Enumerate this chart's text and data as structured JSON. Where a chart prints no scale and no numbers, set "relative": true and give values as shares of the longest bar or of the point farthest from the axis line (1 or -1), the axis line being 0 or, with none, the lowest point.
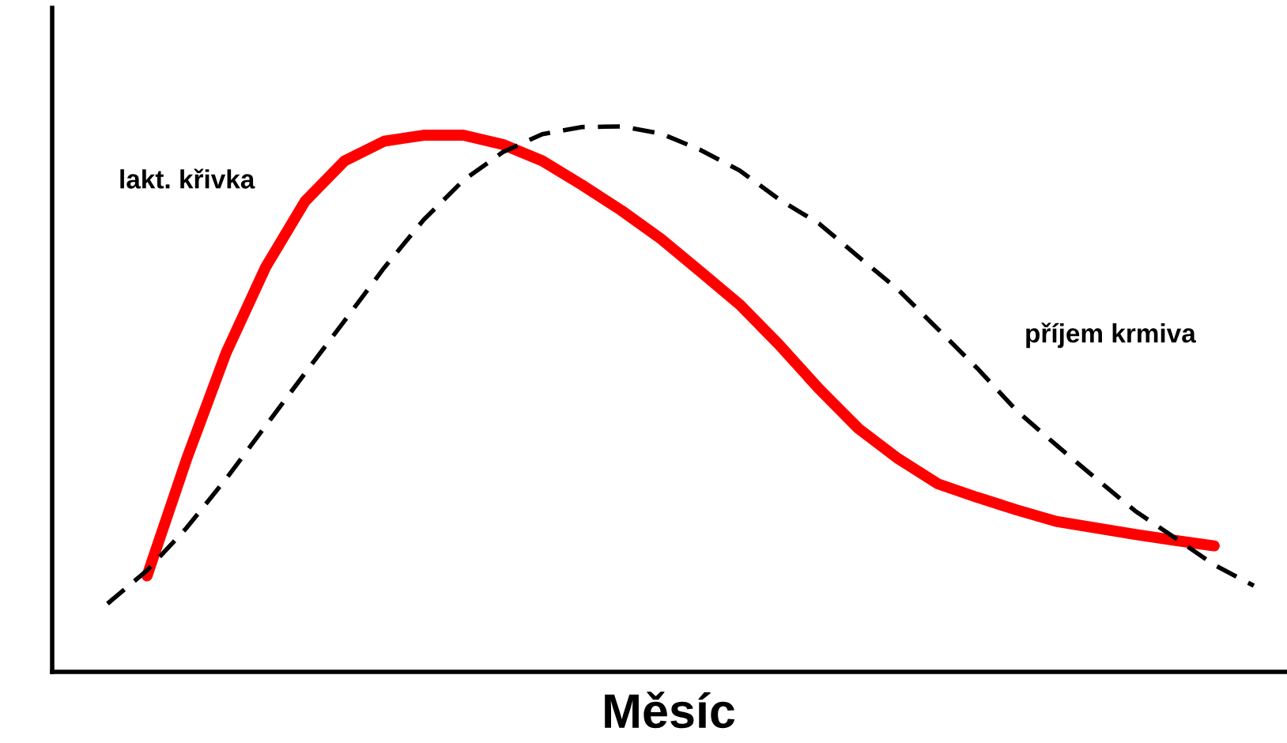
{
  "chart_data": {
    "type": "line",
    "relative": true,
    "xlabel": "Měsíc",
    "legend": false,
    "marker": "none",
    "categories": [
      null,
      null,
      null,
      null,
      null,
      null,
      null,
      null,
      null,
      null,
      null,
      null,
      null,
      null,
      null,
      null,
      null,
      null,
      null,
      null,
      null,
      null,
      null,
      null,
      null,
      null,
      null,
      null,
      null,
      null
    ],
    "series": [
      {
        "name": "lakt. křivka",
        "color": "#ff0000",
        "line_style": "solid",
        "values": [
          null,
          0.176,
          0.39,
          0.585,
          0.742,
          0.863,
          0.937,
          0.973,
          0.984,
          0.984,
          0.967,
          0.937,
          0.893,
          0.846,
          0.794,
          0.734,
          0.673,
          0.599,
          0.519,
          0.446,
          0.391,
          0.345,
          0.32,
          0.297,
          0.276,
          0.264,
          0.252,
          0.241,
          0.231,
          null
        ]
      },
      {
        "name": "příjem krmiva",
        "color": "#000000",
        "line_style": "dashed",
        "values": [
          0.125,
          0.186,
          0.264,
          0.354,
          0.451,
          0.548,
          0.644,
          0.741,
          0.829,
          0.901,
          0.953,
          0.986,
          0.999,
          1.0,
          0.987,
          0.957,
          0.919,
          0.866,
          0.822,
          0.761,
          0.701,
          0.629,
          0.557,
          0.479,
          0.416,
          0.355,
          0.295,
          0.246,
          0.196,
          0.158
        ]
      }
    ]
  }
}
